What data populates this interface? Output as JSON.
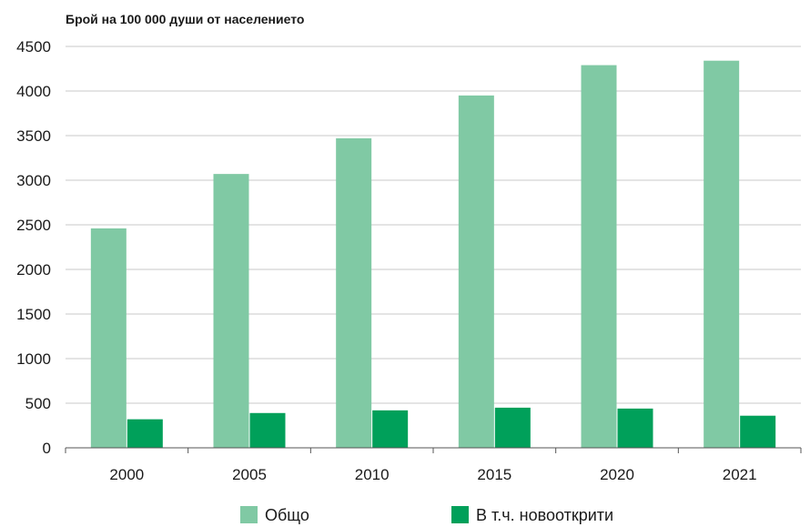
{
  "chart_data": {
    "type": "bar",
    "title": "",
    "ylabel": "Брой на 100 000 души от населението",
    "xlabel": "",
    "categories": [
      "2000",
      "2005",
      "2010",
      "2015",
      "2020",
      "2021"
    ],
    "series": [
      {
        "name": "Общо",
        "color": "#80c9a4",
        "values": [
          2460,
          3070,
          3470,
          3950,
          4290,
          4340
        ]
      },
      {
        "name": "В т.ч. новооткрити",
        "color": "#00a05a",
        "values": [
          320,
          390,
          420,
          450,
          440,
          360
        ]
      }
    ],
    "ylim": [
      0,
      4500
    ],
    "yticks": [
      0,
      500,
      1000,
      1500,
      2000,
      2500,
      3000,
      3500,
      4000,
      4500
    ],
    "grid": true,
    "legend": "bottom"
  }
}
